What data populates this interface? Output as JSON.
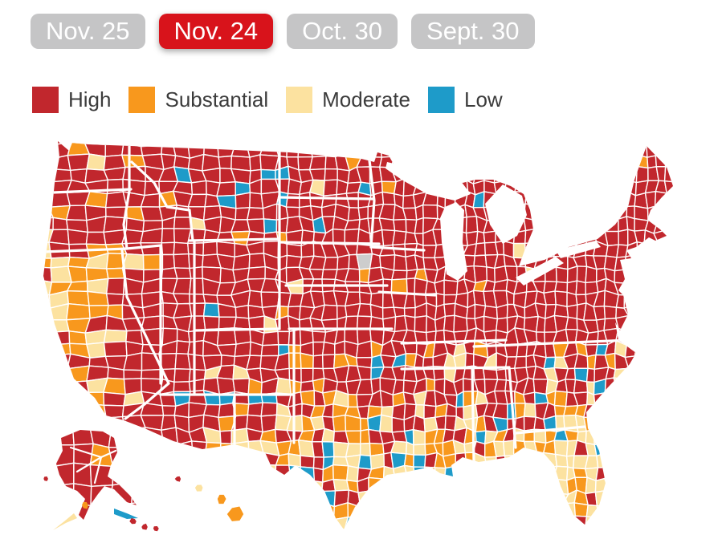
{
  "tabs": {
    "items": [
      {
        "label": "Nov. 25",
        "selected": false
      },
      {
        "label": "Nov. 24",
        "selected": true
      },
      {
        "label": "Oct. 30",
        "selected": false
      },
      {
        "label": "Sept. 30",
        "selected": false
      }
    ],
    "selected_color": "#D8131B",
    "unselected_color": "#C5C5C6",
    "text_color": "#FFFFFF"
  },
  "legend": {
    "items": [
      {
        "label": "High",
        "color": "#C1272D"
      },
      {
        "label": "Substantial",
        "color": "#F8981D"
      },
      {
        "label": "Moderate",
        "color": "#FCE2A0"
      },
      {
        "label": "Low",
        "color": "#1E9BC9"
      }
    ],
    "text_color": "#3C3C3C"
  },
  "map": {
    "name": "us-county-transmission-choropleth",
    "selected_date": "Nov. 24",
    "no_data_color": "#CDCDCD",
    "county_border_color": "#FFFFFF",
    "water_color": "#FFFFFF",
    "includes": [
      "contiguous United States",
      "Alaska",
      "Hawaii"
    ]
  }
}
